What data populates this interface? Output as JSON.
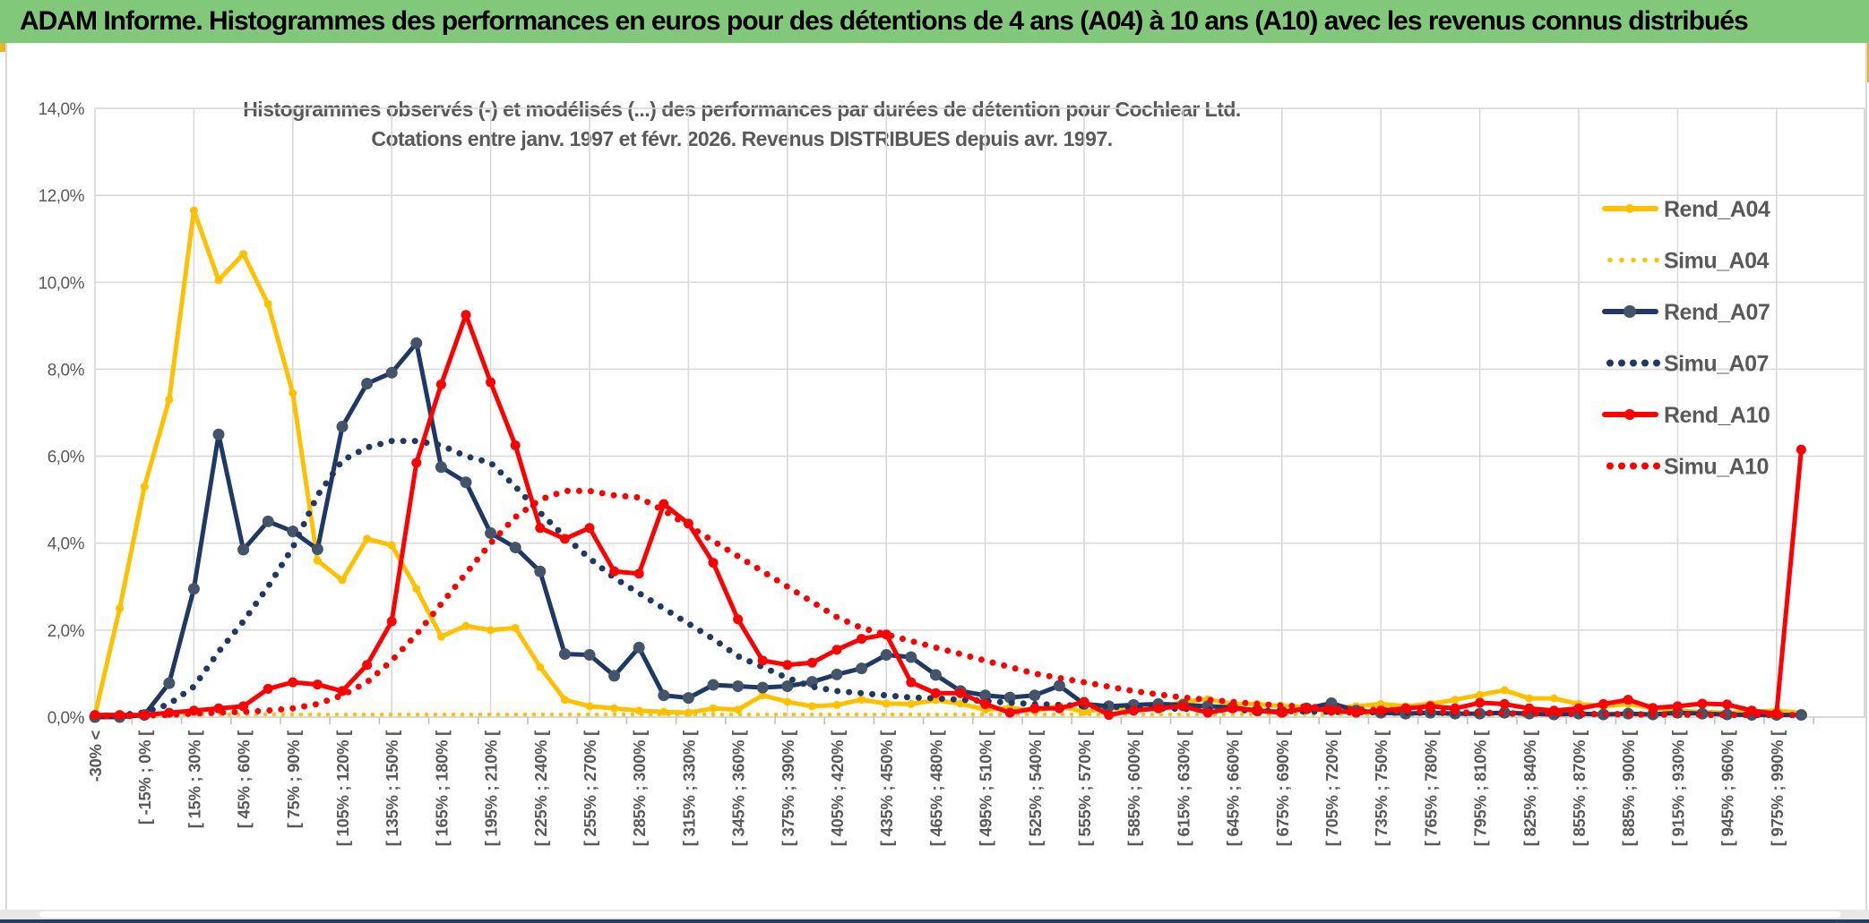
{
  "banner": {
    "title": "ADAM Informe. Histogrammes des performances en euros pour des détentions de 4 ans (A04) à 10 ans (A10) avec les revenus connus distribués"
  },
  "chart_data": {
    "type": "line",
    "title": "Histogrammes observés (-) et modélisés (...) des performances par durées de détention pour Cochlear Ltd.",
    "subtitle": "Cotations entre janv. 1997 et févr. 2026. Revenus DISTRIBUES depuis avr. 1997.",
    "xlabel": "",
    "ylabel": "",
    "ylim": [
      0,
      14
    ],
    "ytick_step_pct": 2,
    "ytick_labels": [
      "14,0%",
      "12,0%",
      "10,0%",
      "8,0%",
      "6,0%",
      "4,0%",
      "2,0%",
      "0,0%"
    ],
    "grid": true,
    "legend_position": "right",
    "bins": 70,
    "bin_width_pct": 15,
    "category_label_every": 2,
    "categories": [
      "-30% <",
      "[ -15% ; 0% [",
      "[ 15% ; 30% [",
      "[ 45% ; 60% [",
      "[ 75% ; 90% [",
      "[ 105% ; 120% [",
      "[ 135% ; 150% [",
      "[ 165% ; 180% [",
      "[ 195% ; 210% [",
      "[ 225% ; 240% [",
      "[ 255% ; 270% [",
      "[ 285% ; 300% [",
      "[ 315% ; 330% [",
      "[ 345% ; 360% [",
      "[ 375% ; 390% [",
      "[ 405% ; 420% [",
      "[ 435% ; 450% [",
      "[ 465% ; 480% [",
      "[ 495% ; 510% [",
      "[ 525% ; 540% [",
      "[ 555% ; 570% [",
      "[ 585% ; 600% [",
      "[ 615% ; 630% [",
      "[ 645% ; 660% [",
      "[ 675% ; 690% [",
      "[ 705% ; 720% [",
      "[ 735% ; 750% [",
      "[ 765% ; 780% [",
      "[ 795% ; 810% [",
      "[ 825% ; 840% [",
      "[ 855% ; 870% [",
      "[ 885% ; 900% [",
      "[ 915% ; 930% [",
      "[ 945% ; 960% [",
      "[ 975% ; 990% ["
    ],
    "colors": {
      "gold": "#FFC000",
      "navy": "#1F3864",
      "navy_marker": "#44546A",
      "red": "#FF0000",
      "grid": "#D9D9D9",
      "axis_text": "#595959",
      "title_text": "#595959"
    },
    "series": [
      {
        "name": "Rend_A04",
        "color": "#FFC000",
        "style": "solid",
        "width": 5,
        "marker_color": "#FFC000",
        "marker_r": 4.5,
        "values": [
          0.05,
          2.5,
          5.3,
          7.3,
          11.65,
          10.05,
          10.65,
          9.5,
          7.45,
          3.6,
          3.15,
          4.1,
          3.95,
          2.95,
          1.85,
          2.1,
          2.0,
          2.05,
          1.15,
          0.4,
          0.25,
          0.2,
          0.15,
          0.12,
          0.1,
          0.2,
          0.17,
          0.5,
          0.35,
          0.25,
          0.28,
          0.4,
          0.31,
          0.3,
          0.39,
          0.31,
          0.17,
          0.22,
          0.14,
          0.26,
          0.12,
          0.22,
          0.14,
          0.22,
          0.35,
          0.41,
          0.3,
          0.3,
          0.25,
          0.23,
          0.2,
          0.25,
          0.3,
          0.25,
          0.3,
          0.4,
          0.51,
          0.62,
          0.43,
          0.43,
          0.3,
          0.25,
          0.3,
          0.21,
          0.15,
          0.12,
          0.1,
          0.12,
          0.15,
          0.1
        ]
      },
      {
        "name": "Simu_A04",
        "color": "#FFC000",
        "style": "dotted",
        "width": 4.5,
        "dot_gap": 10,
        "values": [
          0.06,
          0.06,
          0.06,
          0.06,
          0.06,
          0.06,
          0.06,
          0.06,
          0.06,
          0.06,
          0.06,
          0.06,
          0.06,
          0.06,
          0.06,
          0.06,
          0.06,
          0.06,
          0.06,
          0.06,
          0.06,
          0.06,
          0.06,
          0.06,
          0.06,
          0.06,
          0.06,
          0.06,
          0.06,
          0.06,
          0.06,
          0.06,
          0.06,
          0.06,
          0.06,
          0.06,
          0.06,
          0.06,
          0.06,
          0.06,
          0.06,
          0.06,
          0.06,
          0.06,
          0.06,
          0.06,
          0.06,
          0.06,
          0.06,
          0.06,
          0.06,
          0.06,
          0.06,
          0.06,
          0.06,
          0.06,
          0.06,
          0.06,
          0.06,
          0.06,
          0.06,
          0.06,
          0.06,
          0.06,
          0.06,
          0.06,
          0.06,
          0.06,
          0.06,
          0.06
        ]
      },
      {
        "name": "Rend_A07",
        "color": "#1F3864",
        "style": "solid",
        "width": 5,
        "marker_color": "#44546A",
        "marker_r": 6.5,
        "values": [
          0.0,
          0.0,
          0.05,
          0.78,
          2.95,
          6.5,
          3.85,
          4.5,
          4.27,
          3.86,
          6.68,
          7.67,
          7.92,
          8.6,
          5.75,
          5.4,
          4.23,
          3.9,
          3.35,
          1.45,
          1.43,
          0.95,
          1.6,
          0.5,
          0.44,
          0.74,
          0.71,
          0.68,
          0.71,
          0.81,
          0.98,
          1.12,
          1.43,
          1.38,
          0.97,
          0.6,
          0.5,
          0.45,
          0.5,
          0.72,
          0.3,
          0.25,
          0.28,
          0.3,
          0.28,
          0.25,
          0.22,
          0.15,
          0.12,
          0.2,
          0.32,
          0.15,
          0.1,
          0.08,
          0.1,
          0.08,
          0.08,
          0.1,
          0.08,
          0.06,
          0.08,
          0.06,
          0.08,
          0.06,
          0.1,
          0.08,
          0.06,
          0.05,
          0.05,
          0.05
        ]
      },
      {
        "name": "Simu_A07",
        "color": "#1F3864",
        "style": "dotted",
        "width": 7,
        "dot_gap": 13,
        "values": [
          0.02,
          0.05,
          0.1,
          0.3,
          0.7,
          1.5,
          2.2,
          3.0,
          3.9,
          5.1,
          5.9,
          6.2,
          6.35,
          6.35,
          6.25,
          6.0,
          5.85,
          5.3,
          4.7,
          4.15,
          3.65,
          3.2,
          2.85,
          2.5,
          2.15,
          1.8,
          1.4,
          1.15,
          0.9,
          0.7,
          0.6,
          0.55,
          0.5,
          0.45,
          0.43,
          0.4,
          0.37,
          0.33,
          0.3,
          0.28,
          0.26,
          0.24,
          0.22,
          0.2,
          0.19,
          0.17,
          0.16,
          0.15,
          0.14,
          0.13,
          0.12,
          0.11,
          0.11,
          0.1,
          0.1,
          0.09,
          0.09,
          0.08,
          0.08,
          0.08,
          0.07,
          0.07,
          0.07,
          0.06,
          0.06,
          0.06,
          0.06,
          0.05,
          0.05,
          0.05
        ]
      },
      {
        "name": "Rend_A10",
        "color": "#FF0000",
        "style": "solid",
        "width": 5,
        "marker_color": "#FF0000",
        "marker_r": 5.5,
        "values": [
          0.05,
          0.05,
          0.05,
          0.1,
          0.15,
          0.2,
          0.25,
          0.65,
          0.8,
          0.75,
          0.6,
          1.2,
          2.2,
          5.85,
          7.65,
          9.25,
          7.7,
          6.25,
          4.35,
          4.1,
          4.35,
          3.35,
          3.3,
          4.9,
          4.45,
          3.55,
          2.25,
          1.3,
          1.2,
          1.25,
          1.55,
          1.8,
          1.9,
          0.8,
          0.55,
          0.55,
          0.3,
          0.1,
          0.2,
          0.2,
          0.35,
          0.05,
          0.15,
          0.2,
          0.25,
          0.1,
          0.2,
          0.15,
          0.1,
          0.2,
          0.15,
          0.1,
          0.15,
          0.2,
          0.25,
          0.2,
          0.33,
          0.3,
          0.2,
          0.15,
          0.2,
          0.3,
          0.4,
          0.21,
          0.25,
          0.31,
          0.29,
          0.15,
          0.08,
          6.15
        ]
      },
      {
        "name": "Simu_A10",
        "color": "#FF0000",
        "style": "dotted",
        "width": 7,
        "dot_gap": 13,
        "values": [
          0.02,
          0.02,
          0.03,
          0.05,
          0.08,
          0.1,
          0.12,
          0.15,
          0.2,
          0.3,
          0.5,
          0.8,
          1.3,
          1.9,
          2.6,
          3.3,
          4.0,
          4.6,
          5.0,
          5.2,
          5.2,
          5.1,
          5.05,
          4.75,
          4.4,
          4.05,
          3.7,
          3.35,
          3.0,
          2.65,
          2.3,
          2.05,
          1.9,
          1.75,
          1.6,
          1.45,
          1.3,
          1.15,
          1.0,
          0.9,
          0.8,
          0.7,
          0.6,
          0.52,
          0.45,
          0.4,
          0.35,
          0.3,
          0.27,
          0.24,
          0.21,
          0.18,
          0.16,
          0.14,
          0.13,
          0.11,
          0.1,
          0.09,
          0.08,
          0.08,
          0.07,
          0.07,
          0.06,
          0.06,
          0.06,
          0.05,
          0.05,
          0.05,
          0.05,
          0.05
        ]
      }
    ]
  }
}
